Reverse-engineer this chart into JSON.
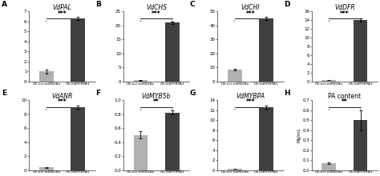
{
  "panels": [
    {
      "label": "A",
      "title": "VdPAL",
      "bar1": 1.0,
      "bar2": 6.3,
      "bar1_err": 0.18,
      "bar2_err": 0.18,
      "ylim": [
        0,
        7
      ],
      "yticks": [
        0,
        1,
        2,
        3,
        4,
        5,
        6,
        7
      ],
      "sig": "***"
    },
    {
      "label": "B",
      "title": "VdCHS",
      "bar1": 0.4,
      "bar2": 21.0,
      "bar1_err": 0.05,
      "bar2_err": 0.4,
      "ylim": [
        0,
        25
      ],
      "yticks": [
        0,
        5,
        10,
        15,
        20,
        25
      ],
      "sig": "***"
    },
    {
      "label": "C",
      "title": "VdCHI",
      "bar1": 8.5,
      "bar2": 45.0,
      "bar1_err": 0.5,
      "bar2_err": 1.0,
      "ylim": [
        0,
        50
      ],
      "yticks": [
        0,
        10,
        20,
        30,
        40,
        50
      ],
      "sig": "***"
    },
    {
      "label": "D",
      "title": "VdDFR",
      "bar1": 0.3,
      "bar2": 14.0,
      "bar1_err": 0.04,
      "bar2_err": 0.35,
      "ylim": [
        0,
        16
      ],
      "yticks": [
        0,
        2,
        4,
        6,
        8,
        10,
        12,
        14,
        16
      ],
      "sig": "***"
    },
    {
      "label": "E",
      "title": "VdANR",
      "bar1": 0.35,
      "bar2": 9.0,
      "bar1_err": 0.05,
      "bar2_err": 0.25,
      "ylim": [
        0,
        10
      ],
      "yticks": [
        0,
        2,
        4,
        6,
        8,
        10
      ],
      "sig": "***"
    },
    {
      "label": "F",
      "title": "VdMYB5b",
      "bar1": 0.5,
      "bar2": 0.82,
      "bar1_err": 0.05,
      "bar2_err": 0.03,
      "ylim": [
        0,
        1.0
      ],
      "yticks": [
        0,
        0.2,
        0.4,
        0.6,
        0.8,
        1.0
      ],
      "sig": "**"
    },
    {
      "label": "G",
      "title": "VdMYBPA",
      "bar1": 0.2,
      "bar2": 12.5,
      "bar1_err": 0.03,
      "bar2_err": 0.35,
      "ylim": [
        0,
        14
      ],
      "yticks": [
        0,
        2,
        4,
        6,
        8,
        10,
        12,
        14
      ],
      "sig": "***"
    },
    {
      "label": "H",
      "title": "PA content",
      "bar1": 0.07,
      "bar2": 0.5,
      "bar1_err": 0.01,
      "bar2_err": 0.1,
      "ylim": [
        0,
        0.7
      ],
      "yticks": [
        0,
        0.1,
        0.2,
        0.3,
        0.4,
        0.5,
        0.6,
        0.7
      ],
      "sig": "**",
      "ylabel": "Mg/mL"
    }
  ],
  "bar_color1": "#b0b0b0",
  "bar_color2": "#404040",
  "xlabel1": "OX-evi-miR828a",
  "xlabel2": "OX-VdMYRPA1",
  "background": "#ffffff",
  "bar_width": 0.45
}
